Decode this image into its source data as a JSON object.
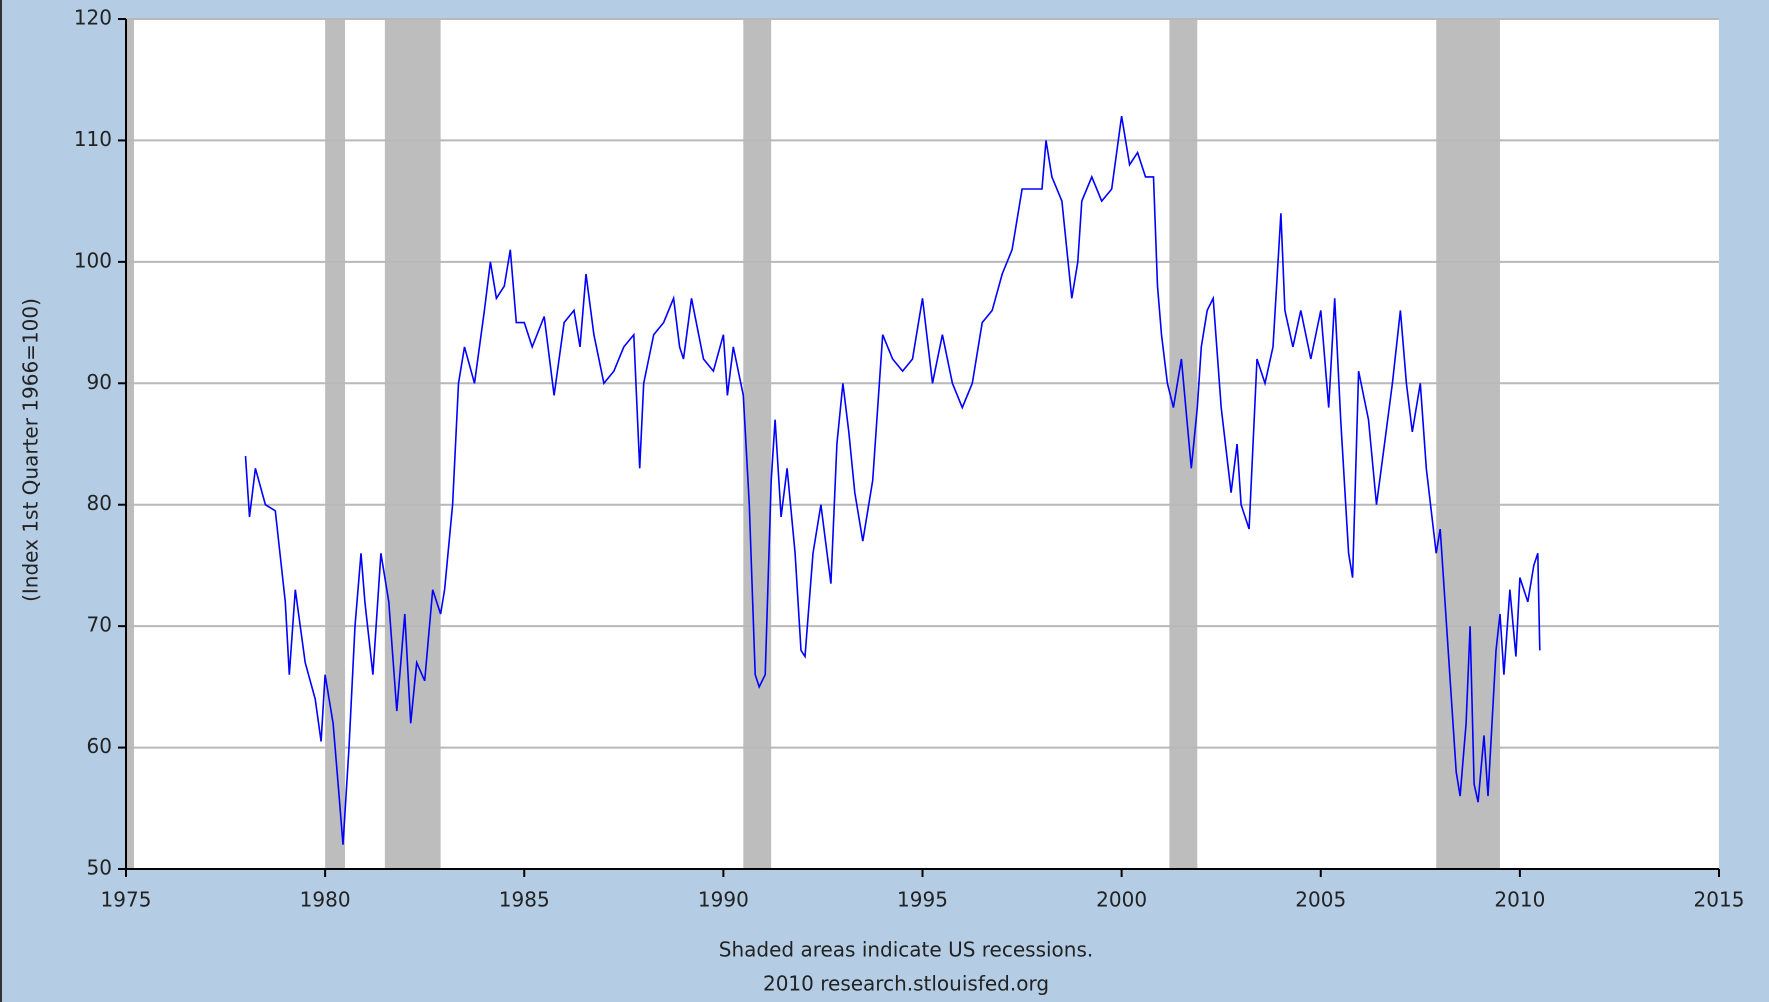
{
  "chart_data": {
    "type": "line",
    "y_label": "(Index 1st Quarter 1966=100)",
    "notes": [
      "Shaded areas indicate US recessions.",
      "2010 research.stlouisfed.org"
    ],
    "color": "#0000ff",
    "recession_color": "#bdbdbd",
    "grid": true,
    "xlim": [
      1975,
      2015
    ],
    "xticks": [
      1975,
      1980,
      1985,
      1990,
      1995,
      2000,
      2005,
      2010,
      2015
    ],
    "ylim": [
      50,
      120
    ],
    "yticks": [
      50,
      60,
      70,
      80,
      90,
      100,
      110,
      120
    ],
    "recessions": [
      [
        1975,
        1975.2
      ],
      [
        1980,
        1980.5
      ],
      [
        1981.5,
        1982.9
      ],
      [
        1990.5,
        1991.2
      ],
      [
        2001.2,
        2001.9
      ],
      [
        2007.9,
        2009.5
      ]
    ],
    "x": [
      1978.0,
      1978.1,
      1978.25,
      1978.5,
      1978.75,
      1979.0,
      1979.1,
      1979.25,
      1979.5,
      1979.75,
      1979.9,
      1980.0,
      1980.2,
      1980.35,
      1980.45,
      1980.6,
      1980.75,
      1980.9,
      1981.0,
      1981.2,
      1981.4,
      1981.6,
      1981.8,
      1982.0,
      1982.15,
      1982.3,
      1982.5,
      1982.7,
      1982.9,
      1983.0,
      1983.2,
      1983.35,
      1983.5,
      1983.75,
      1984.0,
      1984.15,
      1984.3,
      1984.5,
      1984.65,
      1984.8,
      1985.0,
      1985.2,
      1985.5,
      1985.75,
      1986.0,
      1986.25,
      1986.4,
      1986.55,
      1986.75,
      1987.0,
      1987.25,
      1987.5,
      1987.75,
      1987.9,
      1988.0,
      1988.25,
      1988.5,
      1988.75,
      1988.9,
      1989.0,
      1989.2,
      1989.5,
      1989.75,
      1990.0,
      1990.1,
      1990.25,
      1990.5,
      1990.65,
      1990.8,
      1990.9,
      1991.05,
      1991.2,
      1991.3,
      1991.45,
      1991.6,
      1991.8,
      1991.95,
      1992.05,
      1992.25,
      1992.45,
      1992.7,
      1992.85,
      1993.0,
      1993.15,
      1993.3,
      1993.5,
      1993.75,
      1994.0,
      1994.25,
      1994.5,
      1994.75,
      1995.0,
      1995.25,
      1995.5,
      1995.75,
      1996.0,
      1996.25,
      1996.5,
      1996.75,
      1997.0,
      1997.25,
      1997.5,
      1997.75,
      1998.0,
      1998.1,
      1998.25,
      1998.5,
      1998.75,
      1998.9,
      1999.0,
      1999.25,
      1999.5,
      1999.75,
      2000.0,
      2000.2,
      2000.4,
      2000.6,
      2000.8,
      2000.9,
      2001.0,
      2001.15,
      2001.3,
      2001.5,
      2001.75,
      2001.9,
      2002.0,
      2002.15,
      2002.3,
      2002.5,
      2002.75,
      2002.9,
      2003.0,
      2003.2,
      2003.4,
      2003.6,
      2003.8,
      2004.0,
      2004.1,
      2004.3,
      2004.5,
      2004.75,
      2005.0,
      2005.2,
      2005.35,
      2005.5,
      2005.7,
      2005.8,
      2005.95,
      2006.2,
      2006.4,
      2006.6,
      2006.8,
      2007.0,
      2007.15,
      2007.3,
      2007.5,
      2007.65,
      2007.9,
      2008.0,
      2008.2,
      2008.4,
      2008.5,
      2008.65,
      2008.75,
      2008.85,
      2008.95,
      2009.1,
      2009.2,
      2009.4,
      2009.5,
      2009.6,
      2009.75,
      2009.9,
      2010.0,
      2010.2,
      2010.35,
      2010.45,
      2010.5
    ],
    "values": [
      84,
      79,
      83,
      80,
      79.5,
      72,
      66,
      73,
      67,
      64,
      60.5,
      66,
      62,
      56,
      52,
      60,
      70,
      76,
      72,
      66,
      76,
      72,
      63,
      71,
      62,
      67,
      65.5,
      73,
      71,
      73,
      80,
      90,
      93,
      90,
      96,
      100,
      97,
      98,
      101,
      95,
      95,
      93,
      95.5,
      89,
      95,
      96,
      93,
      99,
      94,
      90,
      91,
      93,
      94,
      83,
      90,
      94,
      95,
      97,
      93,
      92,
      97,
      92,
      91,
      94,
      89,
      93,
      89,
      80,
      66,
      65,
      66,
      82,
      87,
      79,
      83,
      76,
      68,
      67.5,
      76,
      80,
      73.5,
      85,
      90,
      86,
      81,
      77,
      82,
      94,
      92,
      91,
      92,
      97,
      90,
      94,
      90,
      88,
      90,
      95,
      96,
      99,
      101,
      106,
      106,
      106,
      110,
      107,
      105,
      97,
      100,
      105,
      107,
      105,
      106,
      112,
      108,
      109,
      107,
      107,
      98,
      94,
      90,
      88,
      92,
      83,
      88,
      93,
      96,
      97,
      88,
      81,
      85,
      80,
      78,
      92,
      90,
      93,
      104,
      96,
      93,
      96,
      92,
      96,
      88,
      97,
      87,
      76,
      74,
      91,
      87,
      80,
      85,
      90,
      96,
      90,
      86,
      90,
      83,
      76,
      78,
      68,
      58,
      56,
      62,
      70,
      57,
      55.5,
      61,
      56,
      68,
      71,
      66,
      73,
      67.5,
      74,
      72,
      75,
      76,
      68
    ]
  }
}
